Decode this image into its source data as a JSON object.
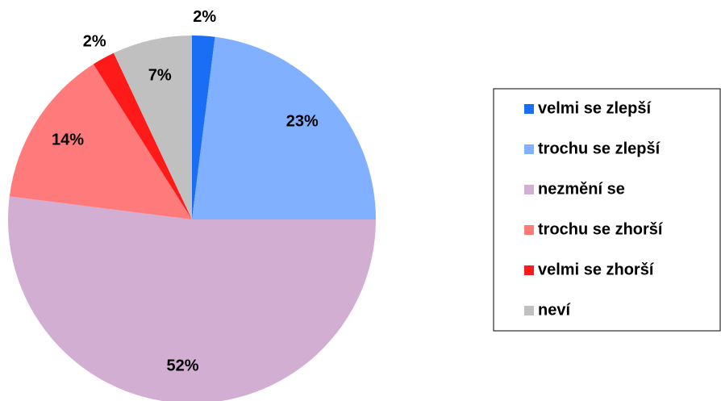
{
  "chart_data": {
    "type": "pie",
    "categories": [
      "velmi se zlepší",
      "trochu se zlepší",
      "nezmění se",
      "trochu se zhorší",
      "velmi se zhorší",
      "neví"
    ],
    "values": [
      2,
      23,
      52,
      14,
      2,
      7
    ],
    "value_labels": [
      "2%",
      "23%",
      "52%",
      "14%",
      "2%",
      "7%"
    ],
    "colors": [
      "#1a6ef5",
      "#80b0ff",
      "#d3aed3",
      "#ff7b7b",
      "#ff1a1a",
      "#c0c0c0"
    ],
    "legend": "right"
  }
}
